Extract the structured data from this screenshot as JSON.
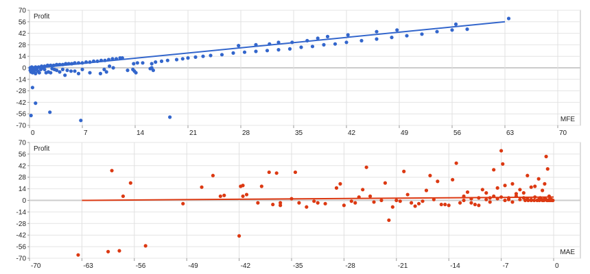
{
  "chart_data": [
    {
      "type": "scatter",
      "title": "",
      "ylabel": "Profit",
      "xlabel": "MFE",
      "xlim": [
        0,
        70
      ],
      "ylim": [
        -70,
        70
      ],
      "xticks": [
        0,
        7,
        14,
        21,
        28,
        35,
        42,
        49,
        56,
        63,
        70
      ],
      "yticks": [
        70,
        56,
        42,
        28,
        14,
        0,
        -14,
        -28,
        -42,
        -56,
        -70
      ],
      "grid": true,
      "color": "#3366cc",
      "trendline": {
        "x0": 0,
        "y0": -1,
        "x1": 63,
        "y1": 56
      },
      "points": [
        [
          0.2,
          -58
        ],
        [
          0.4,
          -24
        ],
        [
          0.8,
          -43
        ],
        [
          2.7,
          -54
        ],
        [
          6.8,
          -64
        ],
        [
          18.6,
          -60
        ],
        [
          0.1,
          -3
        ],
        [
          0.2,
          -5
        ],
        [
          0.3,
          -2
        ],
        [
          0.4,
          -6
        ],
        [
          0.5,
          -1
        ],
        [
          0.6,
          -4
        ],
        [
          0.7,
          -3
        ],
        [
          0.8,
          -7
        ],
        [
          0.9,
          -2
        ],
        [
          1.0,
          -1
        ],
        [
          1.1,
          -4
        ],
        [
          1.3,
          -6
        ],
        [
          1.5,
          -2
        ],
        [
          1.7,
          0
        ],
        [
          2.0,
          -2
        ],
        [
          2.2,
          -6
        ],
        [
          2.5,
          -5
        ],
        [
          2.8,
          -6
        ],
        [
          3.0,
          -1
        ],
        [
          3.3,
          -2
        ],
        [
          3.6,
          -3
        ],
        [
          4.0,
          -5
        ],
        [
          4.4,
          -2
        ],
        [
          4.7,
          -9
        ],
        [
          5.0,
          -3
        ],
        [
          5.5,
          -4
        ],
        [
          6.0,
          -4
        ],
        [
          6.5,
          -7
        ],
        [
          7.0,
          -2
        ],
        [
          8.0,
          -6
        ],
        [
          9.4,
          -7
        ],
        [
          9.9,
          -2
        ],
        [
          10.2,
          -5
        ],
        [
          10.6,
          2
        ],
        [
          11.1,
          0
        ],
        [
          0.1,
          0
        ],
        [
          0.3,
          1
        ],
        [
          0.5,
          0
        ],
        [
          0.8,
          1
        ],
        [
          1.2,
          1
        ],
        [
          1.6,
          2
        ],
        [
          2.0,
          2
        ],
        [
          2.4,
          3
        ],
        [
          2.8,
          3
        ],
        [
          3.2,
          3
        ],
        [
          3.6,
          4
        ],
        [
          4.0,
          4
        ],
        [
          4.4,
          4
        ],
        [
          4.8,
          5
        ],
        [
          5.2,
          5
        ],
        [
          5.6,
          5
        ],
        [
          6.0,
          6
        ],
        [
          6.5,
          6
        ],
        [
          7.0,
          6
        ],
        [
          7.5,
          7
        ],
        [
          8.0,
          7
        ],
        [
          8.5,
          8
        ],
        [
          9.0,
          8
        ],
        [
          9.5,
          9
        ],
        [
          10.0,
          9
        ],
        [
          10.5,
          10
        ],
        [
          11.0,
          11
        ],
        [
          11.5,
          11
        ],
        [
          12.0,
          12
        ],
        [
          12.3,
          12
        ],
        [
          13.0,
          -3
        ],
        [
          13.7,
          -2
        ],
        [
          13.9,
          -4
        ],
        [
          14.1,
          -6
        ],
        [
          16.0,
          -1
        ],
        [
          16.2,
          0
        ],
        [
          16.4,
          -3
        ],
        [
          13.8,
          5
        ],
        [
          14.3,
          6
        ],
        [
          15.0,
          6
        ],
        [
          16.2,
          5
        ],
        [
          16.7,
          7
        ],
        [
          17.5,
          8
        ],
        [
          18.3,
          9
        ],
        [
          19.5,
          10
        ],
        [
          20.3,
          11
        ],
        [
          21.0,
          12
        ],
        [
          22.0,
          13
        ],
        [
          23.0,
          14
        ],
        [
          24.0,
          15
        ],
        [
          25.5,
          16
        ],
        [
          27.0,
          18
        ],
        [
          28.5,
          19
        ],
        [
          30.0,
          20
        ],
        [
          31.5,
          21
        ],
        [
          33.0,
          22
        ],
        [
          34.5,
          23
        ],
        [
          36.0,
          25
        ],
        [
          37.5,
          26
        ],
        [
          39.0,
          28
        ],
        [
          40.5,
          29
        ],
        [
          42.0,
          31
        ],
        [
          44.0,
          33
        ],
        [
          46.0,
          35
        ],
        [
          48.0,
          37
        ],
        [
          50.0,
          39
        ],
        [
          52.0,
          41
        ],
        [
          54.0,
          44
        ],
        [
          56.0,
          46
        ],
        [
          58.0,
          47
        ],
        [
          63.5,
          60
        ],
        [
          27.7,
          27
        ],
        [
          30.0,
          28
        ],
        [
          31.8,
          29
        ],
        [
          33.0,
          31
        ],
        [
          34.8,
          31
        ],
        [
          36.8,
          33
        ],
        [
          38.2,
          36
        ],
        [
          39.5,
          38
        ],
        [
          42.2,
          40
        ],
        [
          46.0,
          44
        ],
        [
          48.7,
          46
        ],
        [
          56.5,
          53
        ]
      ]
    },
    {
      "type": "scatter",
      "title": "",
      "ylabel": "Profit",
      "xlabel": "MAE",
      "xlim": [
        -70,
        0
      ],
      "ylim": [
        -70,
        70
      ],
      "xticks": [
        -70,
        -63,
        -56,
        -49,
        -42,
        -35,
        -28,
        -21,
        -14,
        -7,
        0
      ],
      "yticks": [
        70,
        56,
        42,
        28,
        14,
        0,
        -14,
        -28,
        -42,
        -56,
        -70
      ],
      "grid": true,
      "color": "#dc3912",
      "trendline": {
        "x0": -63,
        "y0": 0,
        "x1": 0,
        "y1": 4
      },
      "points": [
        [
          -63.5,
          -66
        ],
        [
          -59.5,
          -62
        ],
        [
          -59,
          36
        ],
        [
          -58,
          -61
        ],
        [
          -57.5,
          5
        ],
        [
          -56.5,
          21
        ],
        [
          -54.5,
          -55
        ],
        [
          -49.5,
          -4
        ],
        [
          -47,
          16
        ],
        [
          -45.5,
          30
        ],
        [
          -44.5,
          5
        ],
        [
          -44,
          6
        ],
        [
          -42,
          -43
        ],
        [
          -41.8,
          17
        ],
        [
          -41.5,
          18
        ],
        [
          -41.5,
          5
        ],
        [
          -41,
          7
        ],
        [
          -39.5,
          -3
        ],
        [
          -39,
          17
        ],
        [
          -38,
          34
        ],
        [
          -37.5,
          -5
        ],
        [
          -37,
          33
        ],
        [
          -36.5,
          -6
        ],
        [
          -36.5,
          -3
        ],
        [
          -35,
          2
        ],
        [
          -34.5,
          34
        ],
        [
          -34,
          -3
        ],
        [
          -33,
          -8
        ],
        [
          -32,
          -1
        ],
        [
          -31.5,
          -3
        ],
        [
          -30.5,
          -4
        ],
        [
          -29,
          15
        ],
        [
          -28.5,
          20
        ],
        [
          -28,
          -6
        ],
        [
          -27,
          -1
        ],
        [
          -26.5,
          -3
        ],
        [
          -26,
          4
        ],
        [
          -25.5,
          13
        ],
        [
          -25,
          40
        ],
        [
          -24.5,
          5
        ],
        [
          -24,
          -2
        ],
        [
          -23,
          0
        ],
        [
          -22.5,
          21
        ],
        [
          -22,
          -24
        ],
        [
          -21.5,
          -8
        ],
        [
          -21,
          0
        ],
        [
          -20.5,
          -1
        ],
        [
          -20,
          35
        ],
        [
          -19.5,
          7
        ],
        [
          -19,
          -3
        ],
        [
          -18.5,
          -7
        ],
        [
          -18,
          -4
        ],
        [
          -17.5,
          -1
        ],
        [
          -17,
          12
        ],
        [
          -16.5,
          30
        ],
        [
          -16,
          1
        ],
        [
          -15.5,
          23
        ],
        [
          -15,
          -5
        ],
        [
          -14.5,
          -5
        ],
        [
          -14,
          -6
        ],
        [
          -13.5,
          25
        ],
        [
          -13,
          45
        ],
        [
          -12.5,
          -3
        ],
        [
          -12,
          5
        ],
        [
          -11.5,
          10
        ],
        [
          -11,
          -3
        ],
        [
          -10.5,
          -5
        ],
        [
          -10,
          -6
        ],
        [
          -9.5,
          13
        ],
        [
          -9,
          9
        ],
        [
          -8.5,
          -2
        ],
        [
          -8,
          37
        ],
        [
          -7.5,
          15
        ],
        [
          -7,
          60
        ],
        [
          -6.8,
          44
        ],
        [
          -6.5,
          18
        ],
        [
          -6,
          1
        ],
        [
          -5.5,
          20
        ],
        [
          -5,
          8
        ],
        [
          -4.5,
          13
        ],
        [
          -4,
          9
        ],
        [
          -3.5,
          30
        ],
        [
          -3,
          16
        ],
        [
          -2.5,
          17
        ],
        [
          -2,
          26
        ],
        [
          -1.5,
          12
        ],
        [
          -1.2,
          20
        ],
        [
          -1,
          53
        ],
        [
          -0.8,
          38
        ],
        [
          -0.6,
          5
        ],
        [
          -0.5,
          2
        ],
        [
          -0.3,
          1
        ],
        [
          -0.2,
          0
        ],
        [
          -0.1,
          0
        ],
        [
          -12,
          0
        ],
        [
          -11,
          2
        ],
        [
          -10,
          3
        ],
        [
          -9,
          1
        ],
        [
          -8.5,
          3
        ],
        [
          -8,
          5
        ],
        [
          -7.5,
          2
        ],
        [
          -7,
          4
        ],
        [
          -6.5,
          0
        ],
        [
          -6,
          3
        ],
        [
          -5.5,
          -2
        ],
        [
          -5,
          5
        ],
        [
          -4.5,
          1
        ],
        [
          -4,
          3
        ],
        [
          -3.5,
          2
        ],
        [
          -3,
          0
        ],
        [
          -2.5,
          4
        ],
        [
          -2,
          1
        ],
        [
          -1.8,
          3
        ],
        [
          -1.5,
          0
        ],
        [
          -1.2,
          2
        ],
        [
          -1,
          1
        ],
        [
          -0.8,
          0
        ],
        [
          -0.6,
          0
        ],
        [
          -3.8,
          0
        ],
        [
          -3.4,
          0
        ],
        [
          -3.0,
          1
        ],
        [
          -2.6,
          0
        ],
        [
          -2.2,
          0
        ],
        [
          -1.9,
          0
        ],
        [
          -1.6,
          1
        ],
        [
          -1.3,
          0
        ],
        [
          -0.9,
          0
        ],
        [
          -0.4,
          0
        ]
      ]
    }
  ]
}
